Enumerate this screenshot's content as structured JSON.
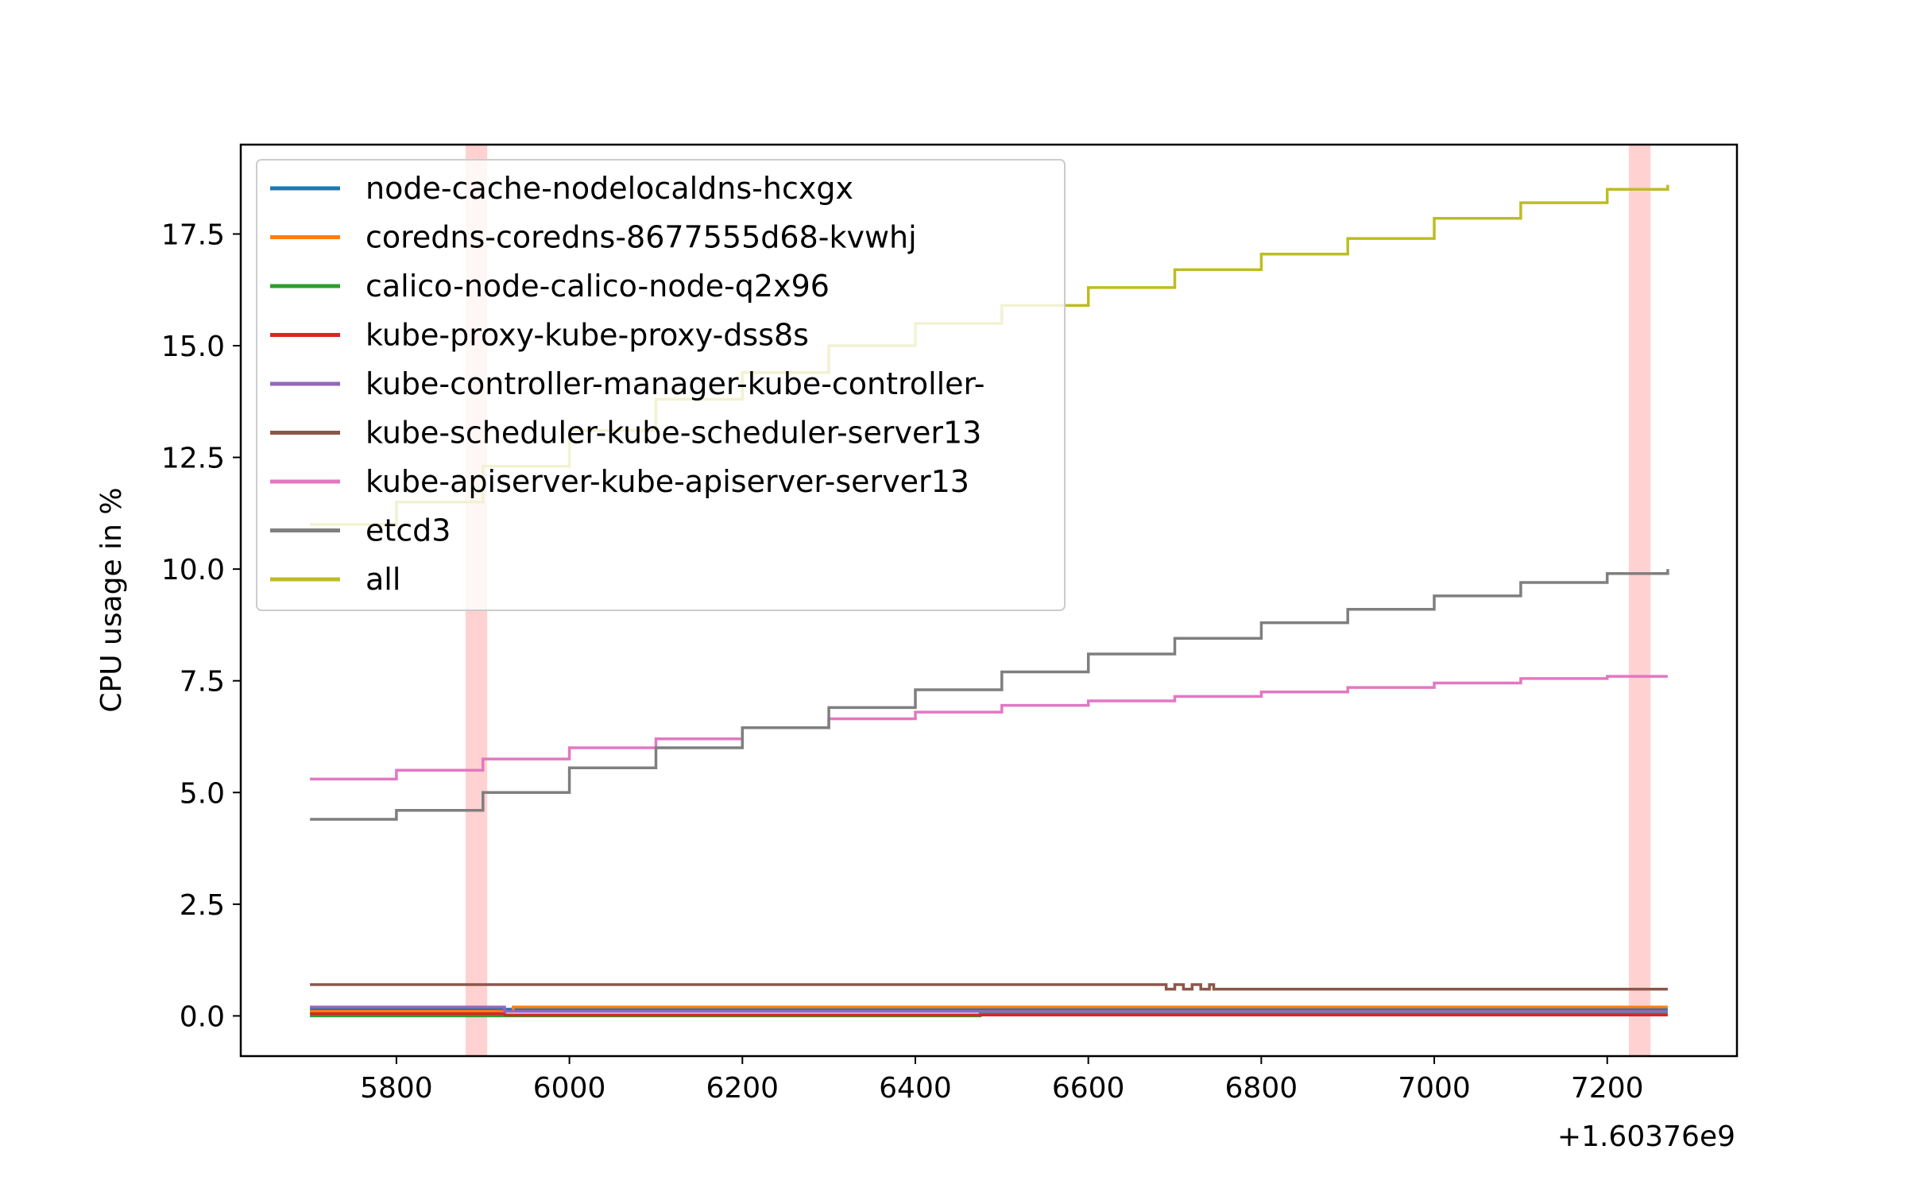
{
  "chart_data": {
    "type": "line",
    "title": "",
    "xlabel": "",
    "ylabel": "CPU usage in %",
    "x_offset_label": "+1.60376e9",
    "xlim": [
      5620,
      7350
    ],
    "ylim": [
      -0.9,
      19.5
    ],
    "x_ticks": [
      5800,
      6000,
      6200,
      6400,
      6600,
      6800,
      7000,
      7200
    ],
    "x_tick_labels": [
      "5800",
      "6000",
      "6200",
      "6400",
      "6600",
      "6800",
      "7000",
      "7200"
    ],
    "y_ticks": [
      0.0,
      2.5,
      5.0,
      7.5,
      10.0,
      12.5,
      15.0,
      17.5
    ],
    "y_tick_labels": [
      "0.0",
      "2.5",
      "5.0",
      "7.5",
      "10.0",
      "12.5",
      "15.0",
      "17.5"
    ],
    "grid": false,
    "legend_position": "top-left",
    "highlight_bands": [
      {
        "x_start": 5880,
        "x_end": 5905,
        "color": "#ff9999"
      },
      {
        "x_start": 7225,
        "x_end": 7250,
        "color": "#ff9999"
      }
    ],
    "series": [
      {
        "name": "node-cache-nodelocaldns-hcxgx",
        "color": "#1f77b4",
        "x": [
          5700,
          7270
        ],
        "y": [
          0.15,
          0.15
        ]
      },
      {
        "name": "coredns-coredns-8677555d68-kvwhj",
        "color": "#ff7f0e",
        "x": [
          5700,
          5930,
          5935,
          7270
        ],
        "y": [
          0.1,
          0.1,
          0.2,
          0.2
        ]
      },
      {
        "name": "calico-node-calico-node-q2x96",
        "color": "#2ca02c",
        "x": [
          5700,
          6470,
          6475,
          7270
        ],
        "y": [
          0.0,
          0.0,
          0.05,
          0.05
        ]
      },
      {
        "name": "kube-proxy-kube-proxy-dss8s",
        "color": "#d62728",
        "x": [
          5700,
          5920,
          5925,
          7270
        ],
        "y": [
          0.05,
          0.05,
          0.02,
          0.02
        ]
      },
      {
        "name": "kube-controller-manager-kube-controller-",
        "color": "#9467bd",
        "x": [
          5700,
          5920,
          5925,
          7270
        ],
        "y": [
          0.2,
          0.2,
          0.1,
          0.1
        ]
      },
      {
        "name": "kube-scheduler-kube-scheduler-server13",
        "color": "#8c564b",
        "x": [
          5700,
          6680,
          6690,
          6700,
          6710,
          6720,
          6730,
          6740,
          6745,
          7270
        ],
        "y": [
          0.7,
          0.7,
          0.6,
          0.7,
          0.6,
          0.7,
          0.6,
          0.7,
          0.6,
          0.6
        ]
      },
      {
        "name": "kube-apiserver-kube-apiserver-server13",
        "color": "#e377c2",
        "x": [
          5700,
          5800,
          5900,
          6000,
          6100,
          6200,
          6300,
          6400,
          6500,
          6600,
          6700,
          6800,
          6900,
          7000,
          7100,
          7200,
          7270
        ],
        "y": [
          5.3,
          5.5,
          5.75,
          6.0,
          6.2,
          6.45,
          6.65,
          6.8,
          6.95,
          7.05,
          7.15,
          7.25,
          7.35,
          7.45,
          7.55,
          7.6,
          7.6
        ]
      },
      {
        "name": "etcd3",
        "color": "#7f7f7f",
        "x": [
          5700,
          5800,
          5900,
          6000,
          6100,
          6200,
          6300,
          6400,
          6500,
          6600,
          6700,
          6800,
          6900,
          7000,
          7100,
          7200,
          7270
        ],
        "y": [
          4.4,
          4.6,
          5.0,
          5.55,
          6.0,
          6.45,
          6.9,
          7.3,
          7.7,
          8.1,
          8.45,
          8.8,
          9.1,
          9.4,
          9.7,
          9.9,
          10.0
        ]
      },
      {
        "name": "all",
        "color": "#bcbd22",
        "x": [
          5700,
          5800,
          5900,
          6000,
          6100,
          6200,
          6300,
          6400,
          6500,
          6600,
          6700,
          6800,
          6900,
          7000,
          7100,
          7200,
          7270
        ],
        "y": [
          11.0,
          11.5,
          12.3,
          13.1,
          13.8,
          14.4,
          15.0,
          15.5,
          15.9,
          16.3,
          16.7,
          17.05,
          17.4,
          17.85,
          18.2,
          18.5,
          18.6
        ]
      }
    ]
  }
}
